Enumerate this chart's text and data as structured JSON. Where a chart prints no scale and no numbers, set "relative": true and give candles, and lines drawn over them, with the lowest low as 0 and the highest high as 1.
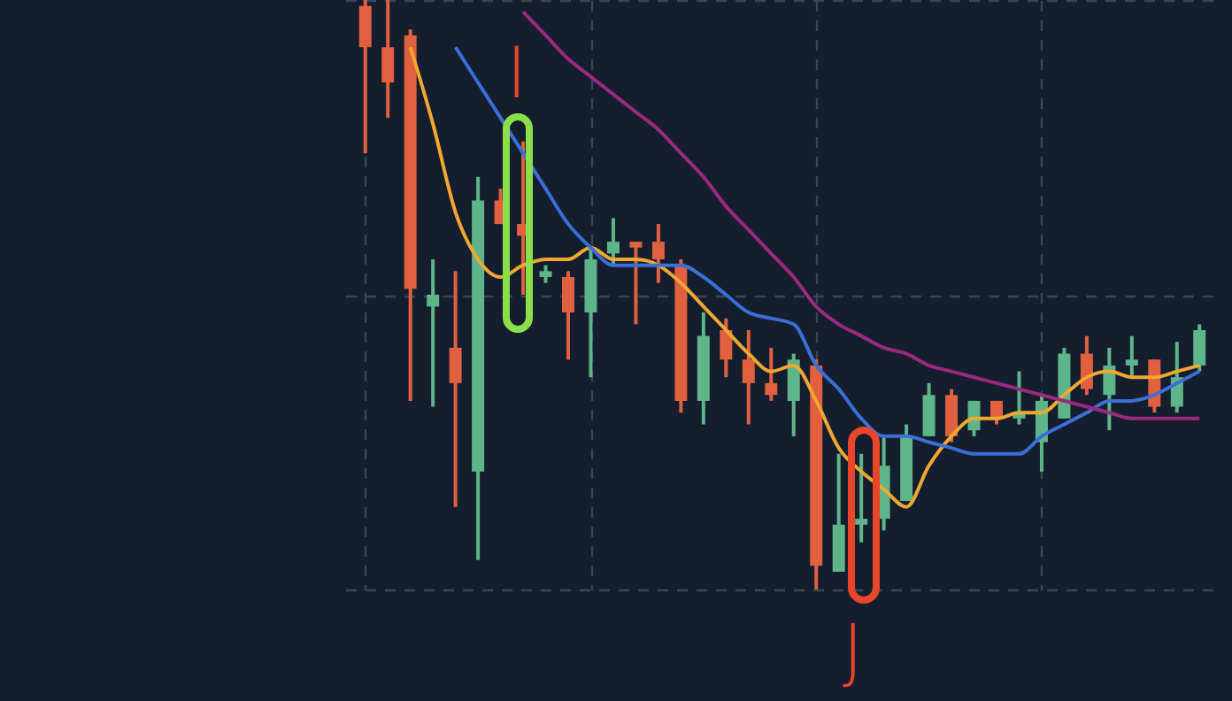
{
  "chart_data": {
    "type": "candlestick",
    "relative": true,
    "grid": true,
    "categories": [
      null,
      null,
      null,
      null,
      null,
      null,
      null,
      null,
      null,
      null,
      null,
      null,
      null,
      null,
      null,
      null,
      null,
      null,
      null,
      null,
      null,
      null,
      null,
      null,
      null,
      null,
      null,
      null,
      null,
      null,
      null,
      null,
      null,
      null,
      null,
      null,
      null,
      null
    ],
    "ohlc": [
      [
        0.99,
        1.0,
        0.74,
        0.92
      ],
      [
        0.92,
        1.0,
        0.8,
        0.86
      ],
      [
        0.94,
        0.95,
        0.32,
        0.51
      ],
      [
        0.48,
        0.56,
        0.31,
        0.5
      ],
      [
        0.41,
        0.54,
        0.14,
        0.35
      ],
      [
        0.2,
        0.7,
        0.05,
        0.66
      ],
      [
        0.66,
        0.68,
        0.62,
        0.62
      ],
      [
        0.62,
        0.76,
        0.5,
        0.6
      ],
      [
        0.53,
        0.55,
        0.52,
        0.54
      ],
      [
        0.53,
        0.54,
        0.39,
        0.47
      ],
      [
        0.47,
        0.58,
        0.36,
        0.56
      ],
      [
        0.57,
        0.63,
        0.55,
        0.59
      ],
      [
        0.59,
        0.59,
        0.45,
        0.58
      ],
      [
        0.59,
        0.62,
        0.52,
        0.56
      ],
      [
        0.55,
        0.56,
        0.3,
        0.32
      ],
      [
        0.32,
        0.47,
        0.28,
        0.43
      ],
      [
        0.44,
        0.46,
        0.36,
        0.39
      ],
      [
        0.39,
        0.44,
        0.28,
        0.35
      ],
      [
        0.35,
        0.41,
        0.32,
        0.33
      ],
      [
        0.32,
        0.4,
        0.26,
        0.39
      ],
      [
        0.38,
        0.39,
        0.0,
        0.04
      ],
      [
        0.03,
        0.23,
        0.03,
        0.11
      ],
      [
        0.11,
        0.23,
        0.08,
        0.12
      ],
      [
        0.12,
        0.26,
        0.1,
        0.21
      ],
      [
        0.15,
        0.28,
        0.15,
        0.26
      ],
      [
        0.26,
        0.35,
        0.26,
        0.33
      ],
      [
        0.33,
        0.34,
        0.25,
        0.26
      ],
      [
        0.27,
        0.32,
        0.26,
        0.32
      ],
      [
        0.32,
        0.32,
        0.28,
        0.29
      ],
      [
        0.29,
        0.37,
        0.28,
        0.3
      ],
      [
        0.25,
        0.33,
        0.2,
        0.32
      ],
      [
        0.29,
        0.41,
        0.29,
        0.4
      ],
      [
        0.4,
        0.43,
        0.33,
        0.34
      ],
      [
        0.33,
        0.41,
        0.27,
        0.38
      ],
      [
        0.38,
        0.43,
        0.36,
        0.39
      ],
      [
        0.39,
        0.39,
        0.3,
        0.31
      ],
      [
        0.31,
        0.42,
        0.3,
        0.36
      ],
      [
        0.38,
        0.45,
        0.37,
        0.44
      ]
    ],
    "colors": [
      "#e0603f",
      "#e0603f",
      "#e0603f",
      "#5fb58a",
      "#e0603f",
      "#5fb58a",
      "#e0603f",
      "#e0603f",
      "#5fb58a",
      "#e0603f",
      "#5fb58a",
      "#5fb58a",
      "#e0603f",
      "#e0603f",
      "#e0603f",
      "#5fb58a",
      "#e0603f",
      "#e0603f",
      "#e0603f",
      "#5fb58a",
      "#e0603f",
      "#5fb58a",
      "#5fb58a",
      "#5fb58a",
      "#5fb58a",
      "#5fb58a",
      "#e0603f",
      "#5fb58a",
      "#e0603f",
      "#5fb58a",
      "#5fb58a",
      "#5fb58a",
      "#e0603f",
      "#5fb58a",
      "#5fb58a",
      "#e0603f",
      "#5fb58a",
      "#5fb58a"
    ],
    "series": [
      {
        "type": "line",
        "color": "#f0a830",
        "values": [
          null,
          null,
          0.92,
          0.79,
          0.64,
          0.56,
          0.53,
          0.55,
          0.56,
          0.56,
          0.58,
          0.56,
          0.56,
          0.55,
          0.52,
          0.48,
          0.44,
          0.4,
          0.37,
          0.38,
          0.32,
          0.24,
          0.2,
          0.17,
          0.14,
          0.21,
          0.26,
          0.29,
          0.29,
          0.3,
          0.3,
          0.33,
          0.36,
          0.37,
          0.36,
          0.36,
          0.37,
          0.38
        ]
      },
      {
        "type": "line",
        "color": "#3a6fd8",
        "values": [
          null,
          null,
          null,
          null,
          0.92,
          0.86,
          0.8,
          0.74,
          0.68,
          0.62,
          0.58,
          0.55,
          0.55,
          0.55,
          0.55,
          0.53,
          0.5,
          0.47,
          0.46,
          0.45,
          0.38,
          0.34,
          0.29,
          0.26,
          0.26,
          0.25,
          0.24,
          0.23,
          0.23,
          0.23,
          0.26,
          0.28,
          0.3,
          0.32,
          0.32,
          0.33,
          0.35,
          0.37
        ]
      },
      {
        "type": "line",
        "color": "#9b2a7f",
        "values": [
          null,
          null,
          null,
          null,
          null,
          null,
          null,
          0.98,
          0.94,
          0.9,
          0.87,
          0.84,
          0.81,
          0.78,
          0.74,
          0.7,
          0.65,
          0.61,
          0.57,
          0.53,
          0.48,
          0.45,
          0.43,
          0.41,
          0.4,
          0.38,
          0.37,
          0.36,
          0.35,
          0.34,
          0.33,
          0.32,
          0.31,
          0.3,
          0.29,
          0.29,
          0.29,
          0.29
        ]
      }
    ],
    "annotations": [
      "I",
      "J"
    ]
  }
}
